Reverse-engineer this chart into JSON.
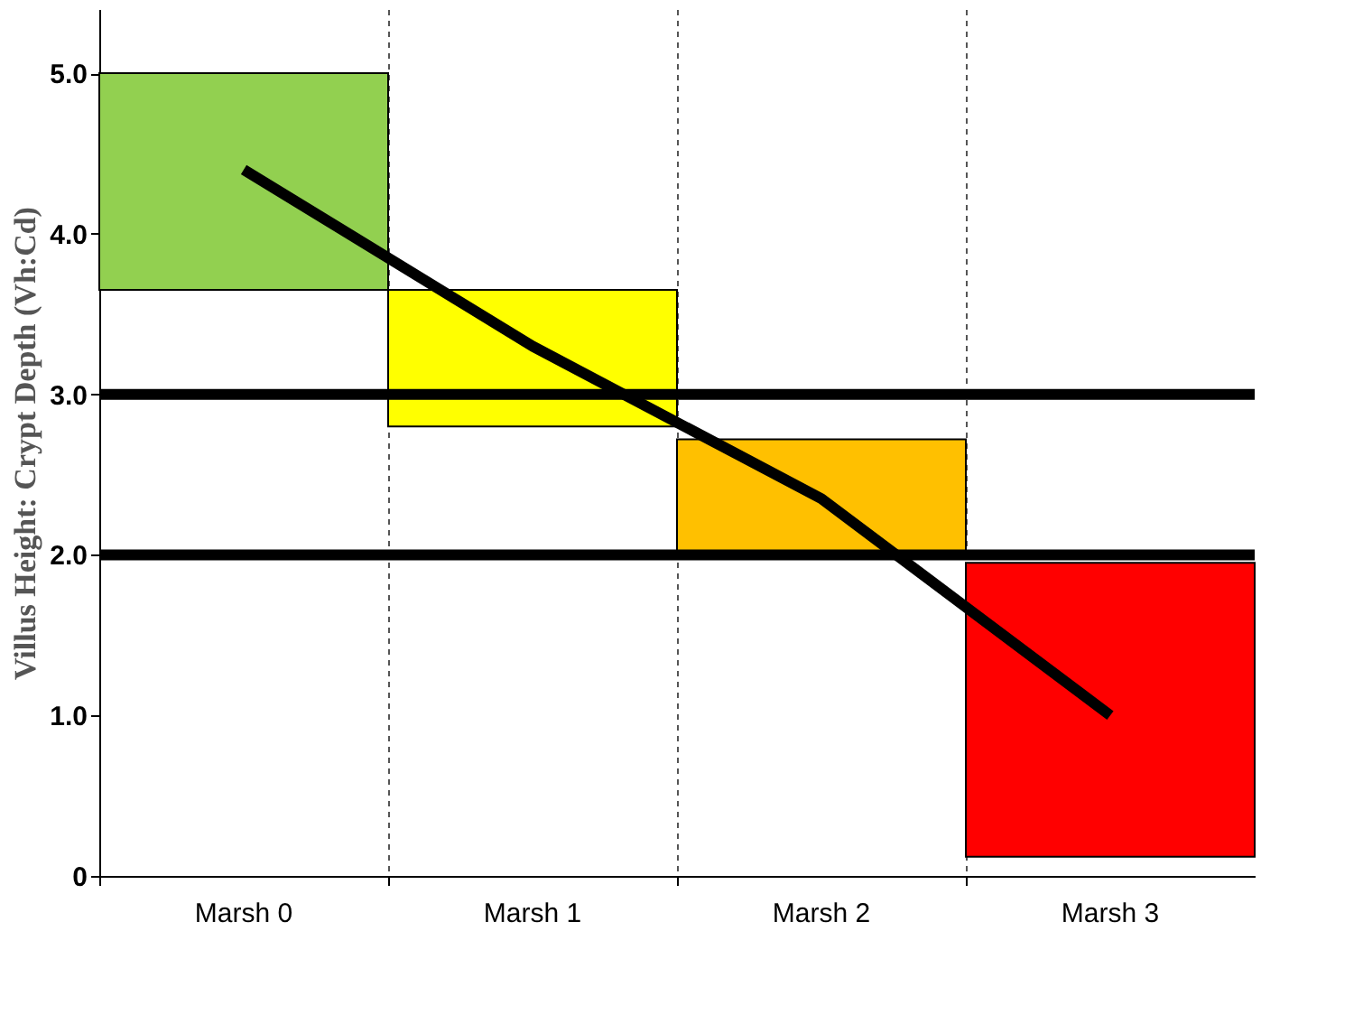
{
  "chart_data": {
    "type": "bar",
    "ylabel": "Villus Height: Crypt Depth (Vh:Cd)",
    "categories": [
      "Marsh 0",
      "Marsh 1",
      "Marsh 2",
      "Marsh 3"
    ],
    "base": [
      3.65,
      2.8,
      2.0,
      0.12
    ],
    "values": [
      1.35,
      0.85,
      0.72,
      1.83
    ],
    "colors": [
      "#92d050",
      "#ffff00",
      "#ffc000",
      "#ff0000"
    ],
    "series": [
      {
        "type": "line",
        "color": "#000000",
        "values": [
          4.4,
          3.3,
          2.35,
          1.0
        ]
      }
    ],
    "ref_lines": [
      {
        "axis": "y",
        "value": 3.0,
        "color": "#000000"
      },
      {
        "axis": "y",
        "value": 2.0,
        "color": "#000000"
      }
    ],
    "ylim": [
      0,
      5.4
    ],
    "yticks": [
      {
        "value": 0,
        "label": "0"
      },
      {
        "value": 1,
        "label": "1.0"
      },
      {
        "value": 2,
        "label": "2.0"
      },
      {
        "value": 3,
        "label": "3.0"
      },
      {
        "value": 4,
        "label": "4.0"
      },
      {
        "value": 5,
        "label": "5.0"
      }
    ],
    "grid": "x"
  }
}
